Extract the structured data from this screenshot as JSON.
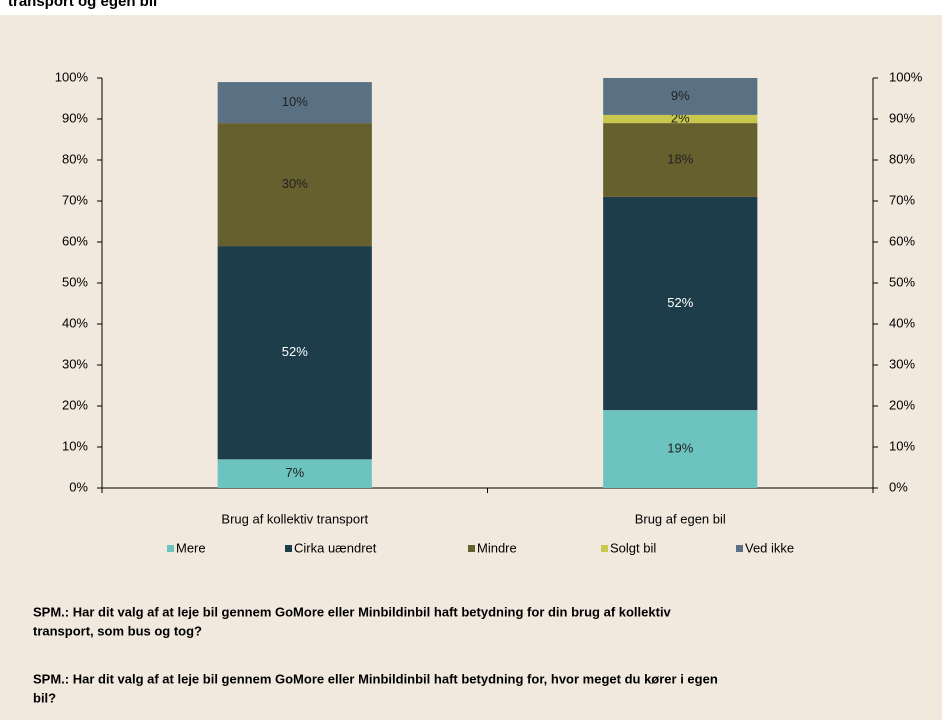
{
  "chart_data": {
    "type": "stacked_bar",
    "title": "transport og egen bil",
    "categories": [
      "Brug af kollektiv transport",
      "Brug af egen bil"
    ],
    "series": [
      {
        "name": "Mere",
        "color": "#6cc3c0",
        "values": [
          7,
          19
        ],
        "value_labels": [
          "7%",
          "19%"
        ]
      },
      {
        "name": "Cirka uændret",
        "color": "#1e3d4b",
        "values": [
          52,
          52
        ],
        "value_labels": [
          "52%",
          "52%"
        ]
      },
      {
        "name": "Mindre",
        "color": "#665f2e",
        "values": [
          30,
          18
        ],
        "value_labels": [
          "30%",
          "18%"
        ]
      },
      {
        "name": "Solgt bil",
        "color": "#c8c84e",
        "values": [
          null,
          2
        ],
        "value_labels": [
          null,
          "2%"
        ]
      },
      {
        "name": "Ved ikke",
        "color": "#5a7184",
        "values": [
          10,
          9
        ],
        "value_labels": [
          "10%",
          "9%"
        ]
      }
    ],
    "ylim": [
      0,
      100
    ],
    "yticks": [
      {
        "value": 0,
        "label": "0%"
      },
      {
        "value": 10,
        "label": "10%"
      },
      {
        "value": 20,
        "label": "20%"
      },
      {
        "value": 30,
        "label": "30%"
      },
      {
        "value": 40,
        "label": "40%"
      },
      {
        "value": 50,
        "label": "50%"
      },
      {
        "value": 60,
        "label": "60%"
      },
      {
        "value": 70,
        "label": "70%"
      },
      {
        "value": 80,
        "label": "80%"
      },
      {
        "value": 90,
        "label": "90%"
      },
      {
        "value": 100,
        "label": "100%"
      }
    ],
    "y2lim": [
      0,
      100
    ],
    "y2ticks": [
      {
        "value": 0,
        "label": "0%"
      },
      {
        "value": 10,
        "label": "10%"
      },
      {
        "value": 20,
        "label": "20%"
      },
      {
        "value": 30,
        "label": "30%"
      },
      {
        "value": 40,
        "label": "40%"
      },
      {
        "value": 50,
        "label": "50%"
      },
      {
        "value": 60,
        "label": "60%"
      },
      {
        "value": 70,
        "label": "70%"
      },
      {
        "value": 80,
        "label": "80%"
      },
      {
        "value": 90,
        "label": "90%"
      },
      {
        "value": 100,
        "label": "100%"
      }
    ],
    "legend": "bottom",
    "notes": [
      [
        "SPM.: Har dit valg af at leje bil gennem GoMore eller Minbildinbil haft betydning for din brug af kollektiv",
        "transport, som bus og tog?"
      ],
      [
        "SPM.: Har dit valg af at leje bil gennem GoMore eller Minbildinbil haft betydning for, hvor meget du kører i egen",
        "bil?"
      ]
    ]
  }
}
